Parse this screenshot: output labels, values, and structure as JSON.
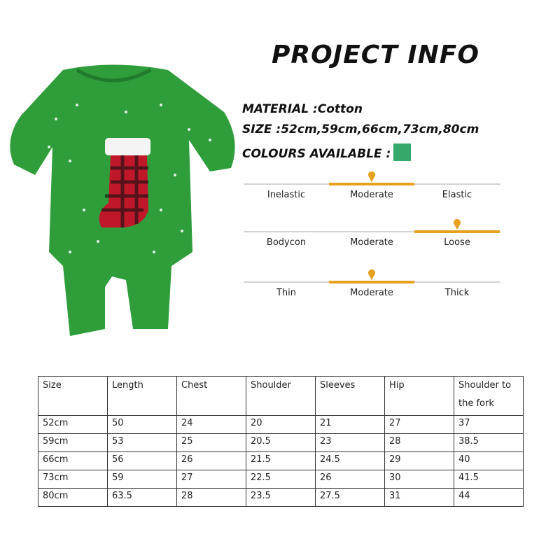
{
  "title": "PROJECT INFO",
  "material": "MATERIAL :Cotton",
  "size": "SIZE :52cm,59cm,66cm,73cm,80cm",
  "colours_label": "COLOURS AVAILABLE :",
  "colours": [
    "#36a86a"
  ],
  "accent": "#e6a11f",
  "scales": [
    {
      "labels": [
        "Inelastic",
        "Moderate",
        "Elastic"
      ],
      "selected": 1
    },
    {
      "labels": [
        "Bodycon",
        "Moderate",
        "Loose"
      ],
      "selected": 2
    },
    {
      "labels": [
        "Thin",
        "Moderate",
        "Thick"
      ],
      "selected": 1
    }
  ],
  "table": {
    "headers": [
      "Size",
      "Length",
      "Chest",
      "Shoulder",
      "Sleeves",
      "Hip",
      "Shoulder to the fork"
    ],
    "rows": [
      [
        "52cm",
        "50",
        "24",
        "20",
        "21",
        "27",
        "37"
      ],
      [
        "59cm",
        "53",
        "25",
        "20.5",
        "23",
        "28",
        "38.5"
      ],
      [
        "66cm",
        "56",
        "26",
        "21.5",
        "24.5",
        "29",
        "40"
      ],
      [
        "73cm",
        "59",
        "27",
        "22.5",
        "26",
        "30",
        "41.5"
      ],
      [
        "80cm",
        "63.5",
        "28",
        "23.5",
        "27.5",
        "31",
        "44"
      ]
    ]
  }
}
